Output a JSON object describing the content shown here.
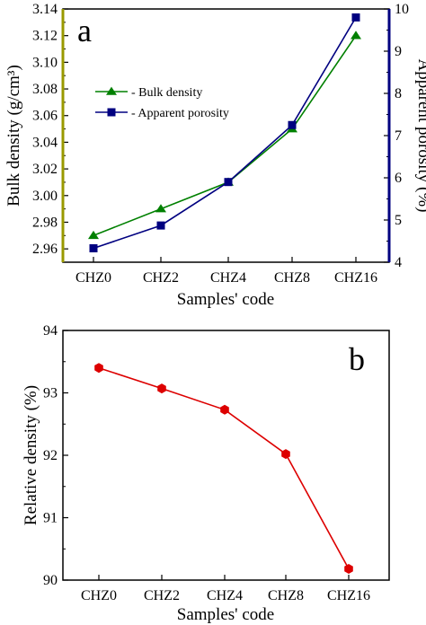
{
  "chart_data": [
    {
      "type": "line",
      "panel_label": "a",
      "xlabel": "Samples' code",
      "ylabel": "Bulk density (g/cm³)",
      "y2label": "Apparent porosity (%)",
      "categories": [
        "CHZ0",
        "CHZ2",
        "CHZ4",
        "CHZ8",
        "CHZ16"
      ],
      "ylim": [
        2.95,
        3.14
      ],
      "y2lim": [
        4,
        10
      ],
      "yticks": [
        "2.96",
        "2.98",
        "3.00",
        "3.02",
        "3.04",
        "3.06",
        "3.08",
        "3.10",
        "3.12",
        "3.14"
      ],
      "y2ticks": [
        "4",
        "5",
        "6",
        "7",
        "8",
        "9",
        "10"
      ],
      "left_axis_color": "#999900",
      "right_axis_color": "#000080",
      "legend_position": "upper-left",
      "series": [
        {
          "name": "- Bulk density",
          "axis": "left",
          "marker": "triangle",
          "color": "#008000",
          "values": [
            2.97,
            2.99,
            3.01,
            3.05,
            3.12
          ]
        },
        {
          "name": "- Apparent porosity",
          "axis": "right",
          "marker": "square",
          "color": "#000080",
          "values": [
            4.33,
            4.87,
            5.9,
            7.25,
            9.8
          ]
        }
      ]
    },
    {
      "type": "line",
      "panel_label": "b",
      "xlabel": "Samples' code",
      "ylabel": "Relative density (%)",
      "categories": [
        "CHZ0",
        "CHZ2",
        "CHZ4",
        "CHZ8",
        "CHZ16"
      ],
      "ylim": [
        90,
        94
      ],
      "yticks": [
        "90",
        "91",
        "92",
        "93",
        "94"
      ],
      "series": [
        {
          "marker": "hexagon",
          "color": "#dd0000",
          "values": [
            93.4,
            93.07,
            92.73,
            92.02,
            90.18
          ]
        }
      ]
    }
  ]
}
